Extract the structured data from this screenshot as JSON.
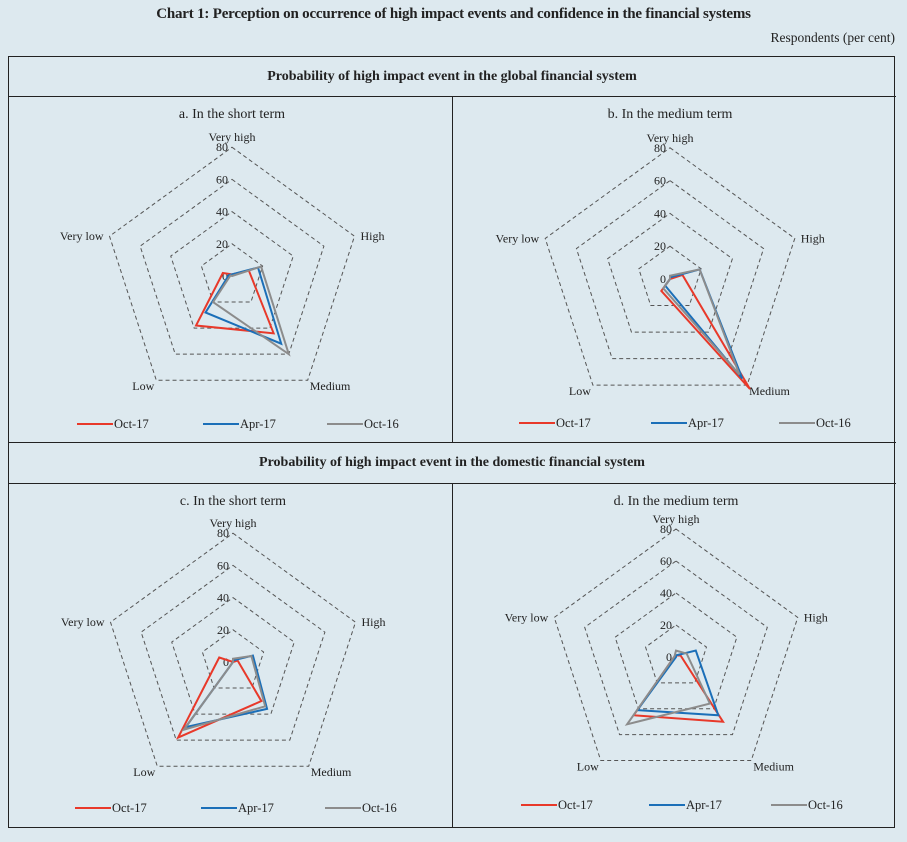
{
  "title": "Chart 1: Perception on occurrence of high impact events and confidence in the financial systems",
  "units_label": "Respondents (per cent)",
  "sections": [
    {
      "header": "Probability of high impact event in the global financial system"
    },
    {
      "header": "Probability of high impact event in the domestic financial system"
    }
  ],
  "colors": {
    "Oct-17": "#e8392a",
    "Apr-17": "#1b6fb8",
    "Oct-16": "#8c8c8c",
    "grid": "#555555",
    "background": "#dde9ef"
  },
  "chart_data": [
    {
      "type": "radar",
      "title": "a. In the short term",
      "axes": [
        "Very high",
        "High",
        "Medium",
        "Low",
        "Very low"
      ],
      "ticks": [
        0,
        20,
        40,
        60,
        80
      ],
      "range": [
        0,
        80
      ],
      "legend_position": "bottom",
      "series": [
        {
          "name": "Oct-17",
          "values": [
            1,
            11,
            44,
            38,
            6
          ]
        },
        {
          "name": "Apr-17",
          "values": [
            1,
            17,
            52,
            28,
            2
          ]
        },
        {
          "name": "Oct-16",
          "values": [
            0,
            19,
            60,
            20,
            1
          ]
        }
      ]
    },
    {
      "type": "radar",
      "title": "b. In the medium term",
      "axes": [
        "Very high",
        "High",
        "Medium",
        "Low",
        "Very low"
      ],
      "ticks": [
        0,
        20,
        40,
        60,
        80
      ],
      "range": [
        0,
        80
      ],
      "legend_position": "bottom",
      "series": [
        {
          "name": "Oct-17",
          "values": [
            0,
            8,
            83,
            9,
            0
          ]
        },
        {
          "name": "Apr-17",
          "values": [
            1,
            19,
            75,
            5,
            0
          ]
        },
        {
          "name": "Oct-16",
          "values": [
            2,
            19,
            72,
            7,
            0
          ]
        }
      ]
    },
    {
      "type": "radar",
      "title": "c. In the short term",
      "axes": [
        "Very high",
        "High",
        "Medium",
        "Low",
        "Very low"
      ],
      "ticks": [
        0,
        20,
        40,
        60,
        80
      ],
      "range": [
        0,
        80
      ],
      "legend_position": "bottom",
      "series": [
        {
          "name": "Oct-17",
          "values": [
            0,
            3,
            30,
            58,
            9
          ]
        },
        {
          "name": "Apr-17",
          "values": [
            1,
            13,
            36,
            50,
            0
          ]
        },
        {
          "name": "Oct-16",
          "values": [
            2,
            12,
            34,
            52,
            0
          ]
        }
      ]
    },
    {
      "type": "radar",
      "title": "d. In the medium term",
      "axes": [
        "Very high",
        "High",
        "Medium",
        "Low",
        "Very low"
      ],
      "ticks": [
        0,
        20,
        40,
        60,
        80
      ],
      "range": [
        0,
        80
      ],
      "legend_position": "bottom",
      "series": [
        {
          "name": "Oct-17",
          "values": [
            1,
            3,
            50,
            45,
            1
          ]
        },
        {
          "name": "Apr-17",
          "values": [
            1,
            13,
            45,
            41,
            0
          ]
        },
        {
          "name": "Oct-16",
          "values": [
            4,
            7,
            36,
            52,
            1
          ]
        }
      ]
    }
  ]
}
